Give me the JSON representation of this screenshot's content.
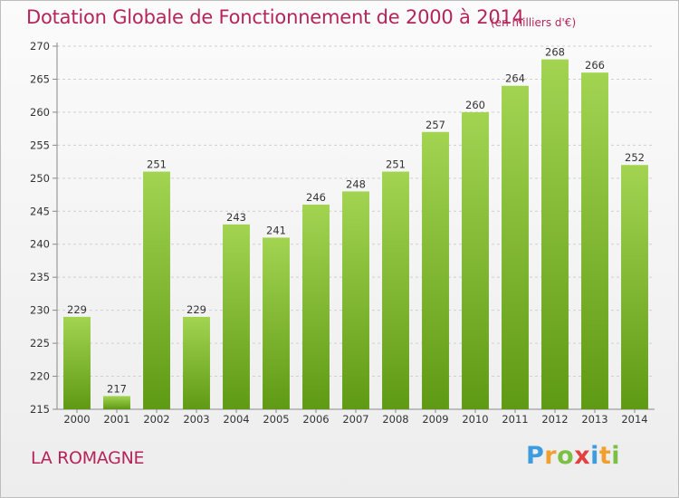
{
  "header": {
    "title": "Dotation Globale de Fonctionnement de 2000 à 2014",
    "subtitle": "(en milliers d'€)"
  },
  "footer": {
    "location": "LA ROMAGNE",
    "logo_letters": [
      "P",
      "r",
      "o",
      "x",
      "i",
      "t",
      "i"
    ],
    "logo_colors": [
      "#3d9be0",
      "#f0a030",
      "#7cc043",
      "#e2413f",
      "#3d9be0",
      "#f0a030",
      "#7cc043"
    ]
  },
  "chart_data": {
    "type": "bar",
    "title": "Dotation Globale de Fonctionnement de 2000 à 2014",
    "subtitle": "(en milliers d'€)",
    "categories": [
      "2000",
      "2001",
      "2002",
      "2003",
      "2004",
      "2005",
      "2006",
      "2007",
      "2008",
      "2009",
      "2010",
      "2011",
      "2012",
      "2013",
      "2014"
    ],
    "values": [
      229,
      217,
      251,
      229,
      243,
      241,
      246,
      248,
      251,
      257,
      260,
      264,
      268,
      266,
      252
    ],
    "ylim": [
      215,
      270
    ],
    "yticks": [
      215,
      220,
      225,
      230,
      235,
      240,
      245,
      250,
      255,
      260,
      265,
      270
    ],
    "grid": true,
    "colors": {
      "bar_top": "#a2d452",
      "bar_bottom": "#5f9a14",
      "grid": "#cfcfcf",
      "axis": "#888888"
    }
  }
}
